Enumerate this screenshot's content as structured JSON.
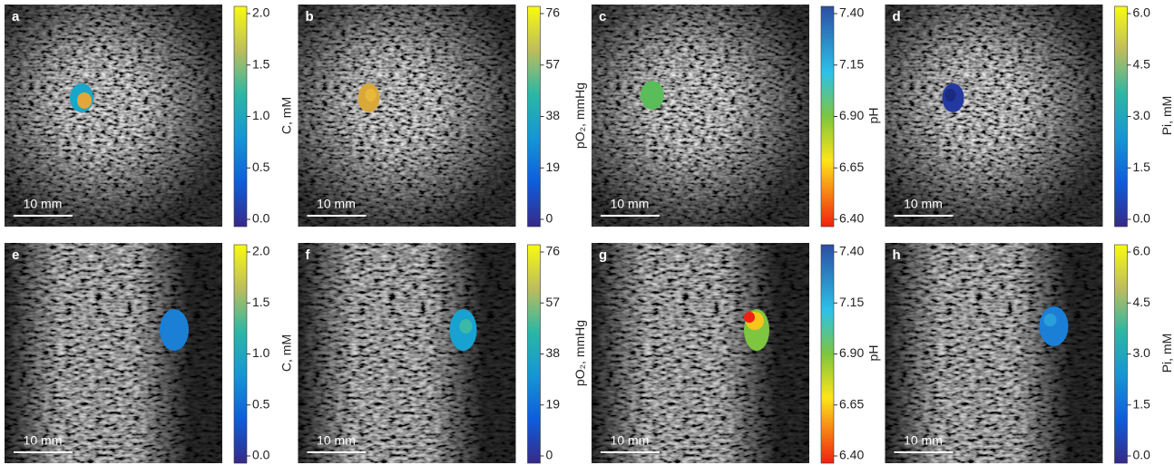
{
  "panels": [
    {
      "label": "a",
      "scale_bar": "10 mm",
      "colorbar": {
        "label": "C, mM",
        "ticks": [
          "2.0",
          "1.5",
          "1.0",
          "0.5",
          "0.0"
        ]
      }
    },
    {
      "label": "b",
      "scale_bar": "10 mm",
      "colorbar": {
        "label": "pO₂, mmHg",
        "ticks": [
          "76",
          "57",
          "38",
          "19",
          "0"
        ]
      }
    },
    {
      "label": "c",
      "scale_bar": "10 mm",
      "colorbar": {
        "label": "pH",
        "ticks": [
          "7.40",
          "7.15",
          "6.90",
          "6.65",
          "6.40"
        ]
      }
    },
    {
      "label": "d",
      "scale_bar": "10 mm",
      "colorbar": {
        "label": "Pi, mM",
        "ticks": [
          "6.0",
          "4.5",
          "3.0",
          "1.5",
          "0.0"
        ]
      }
    },
    {
      "label": "e",
      "scale_bar": "10 mm",
      "colorbar": {
        "label": "C, mM",
        "ticks": [
          "2.0",
          "1.5",
          "1.0",
          "0.5",
          "0.0"
        ]
      }
    },
    {
      "label": "f",
      "scale_bar": "10 mm",
      "colorbar": {
        "label": "pO₂, mmHg",
        "ticks": [
          "76",
          "57",
          "38",
          "19",
          "0"
        ]
      }
    },
    {
      "label": "g",
      "scale_bar": "10 mm",
      "colorbar": {
        "label": "pH",
        "ticks": [
          "7.40",
          "7.15",
          "6.90",
          "6.65",
          "6.40"
        ]
      }
    },
    {
      "label": "h",
      "scale_bar": "10 mm",
      "colorbar": {
        "label": "Pi, mM",
        "ticks": [
          "6.0",
          "4.5",
          "3.0",
          "1.5",
          "0.0"
        ]
      }
    }
  ]
}
